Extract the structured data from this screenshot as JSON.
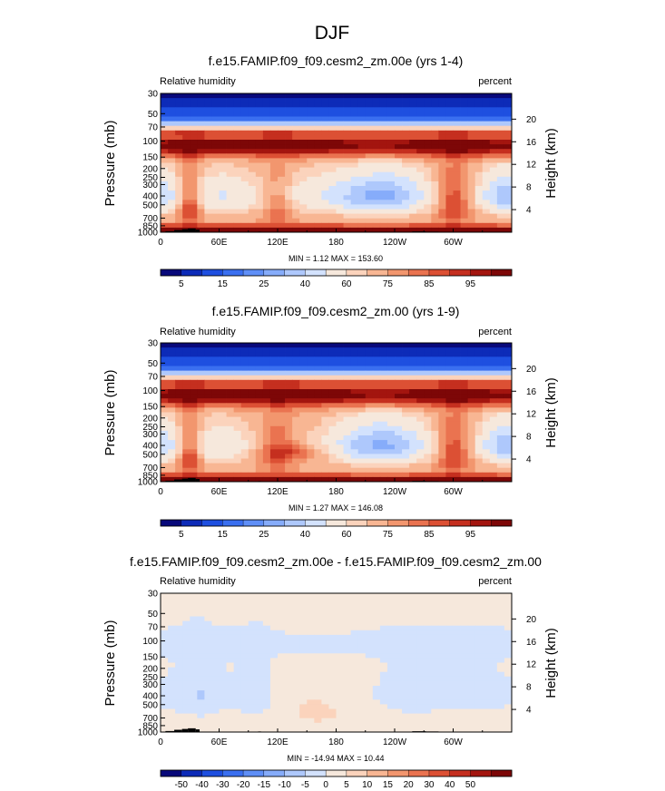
{
  "figure": {
    "main_title": "DJF"
  },
  "palettes": {
    "abs": [
      "#08097a",
      "#0d2bb8",
      "#1e4fe0",
      "#3a6ff0",
      "#5f8ff7",
      "#86acfa",
      "#aec8fc",
      "#d3e2fd",
      "#f6e8dc",
      "#fbd3bc",
      "#f8b693",
      "#f2966e",
      "#ea7350",
      "#dc5034",
      "#c52f1f",
      "#a3150f",
      "#7d0707"
    ],
    "diff": [
      "#08097a",
      "#0d2bb8",
      "#1e4fe0",
      "#3a6ff0",
      "#5f8ff7",
      "#86acfa",
      "#aec8fc",
      "#d3e2fd",
      "#f6e8dc",
      "#fbd3bc",
      "#f8b693",
      "#f2966e",
      "#ea7350",
      "#dc5034",
      "#c52f1f",
      "#a3150f",
      "#7d0707"
    ]
  },
  "chart_data": [
    {
      "type": "heatmap",
      "id": "p1",
      "title": "f.e15.FAMIP.f09_f09.cesm2_zm.00e (yrs 1-4)",
      "left_label": "Relative humidity",
      "right_label": "percent",
      "ylabel": "Pressure (mb)",
      "ylabel_right": "Height (km)",
      "x_ticks": [
        "0",
        "60E",
        "120E",
        "180",
        "120W",
        "60W"
      ],
      "y_ticks": [
        "30",
        "50",
        "70",
        "100",
        "150",
        "200",
        "250",
        "300",
        "400",
        "500",
        "700",
        "850",
        "1000"
      ],
      "height_ticks": [
        "20",
        "16",
        "12",
        "8",
        "4"
      ],
      "stats": "MIN =   1.12  MAX = 153.60",
      "colorbar_labels": [
        "5",
        "15",
        "25",
        "40",
        "60",
        "75",
        "85",
        "95"
      ],
      "palette": "abs",
      "field": "abs1",
      "xlim": [
        0,
        360
      ],
      "ylim": [
        1000,
        30
      ]
    },
    {
      "type": "heatmap",
      "id": "p2",
      "title": "f.e15.FAMIP.f09_f09.cesm2_zm.00 (yrs 1-9)",
      "left_label": "Relative humidity",
      "right_label": "percent",
      "ylabel": "Pressure (mb)",
      "ylabel_right": "Height (km)",
      "x_ticks": [
        "0",
        "60E",
        "120E",
        "180",
        "120W",
        "60W"
      ],
      "y_ticks": [
        "30",
        "50",
        "70",
        "100",
        "150",
        "200",
        "250",
        "300",
        "400",
        "500",
        "700",
        "850",
        "1000"
      ],
      "height_ticks": [
        "20",
        "16",
        "12",
        "8",
        "4"
      ],
      "stats": "MIN =   1.27  MAX = 146.08",
      "colorbar_labels": [
        "5",
        "15",
        "25",
        "40",
        "60",
        "75",
        "85",
        "95"
      ],
      "palette": "abs",
      "field": "abs2",
      "xlim": [
        0,
        360
      ],
      "ylim": [
        1000,
        30
      ]
    },
    {
      "type": "heatmap",
      "id": "p3",
      "title": "f.e15.FAMIP.f09_f09.cesm2_zm.00e - f.e15.FAMIP.f09_f09.cesm2_zm.00",
      "left_label": "Relative humidity",
      "right_label": "percent",
      "ylabel": "Pressure (mb)",
      "ylabel_right": "Height (km)",
      "x_ticks": [
        "0",
        "60E",
        "120E",
        "180",
        "120W",
        "60W"
      ],
      "y_ticks": [
        "30",
        "50",
        "70",
        "100",
        "150",
        "200",
        "250",
        "300",
        "400",
        "500",
        "700",
        "850",
        "1000"
      ],
      "height_ticks": [
        "20",
        "16",
        "12",
        "8",
        "4"
      ],
      "stats": "MIN = -14.94  MAX =  10.44",
      "colorbar_labels": [
        "-50",
        "-40",
        "-30",
        "-20",
        "-15",
        "-10",
        "-5",
        "0",
        "5",
        "10",
        "15",
        "20",
        "30",
        "40",
        "50"
      ],
      "palette": "diff",
      "field": "diff",
      "xlim": [
        0,
        360
      ],
      "ylim": [
        1000,
        30
      ]
    }
  ]
}
